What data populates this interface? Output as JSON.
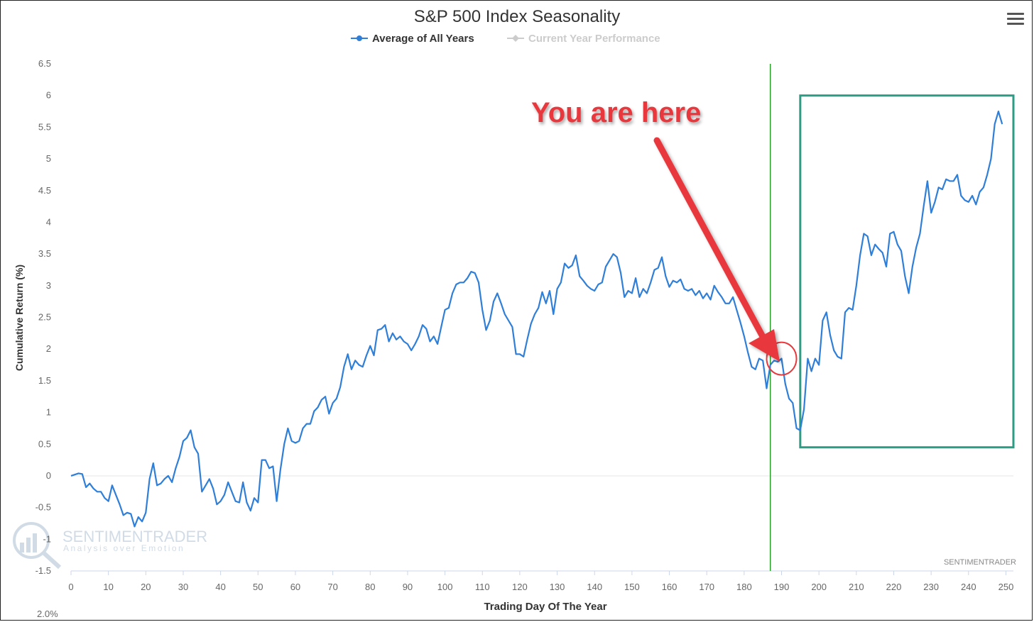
{
  "chart_data": {
    "type": "line",
    "title": "S&P 500 Index Seasonality",
    "xlabel": "Trading Day Of The Year",
    "ylabel": "Cumulative Return (%)",
    "xlim": [
      0,
      252
    ],
    "ylim": [
      -1.5,
      6.5
    ],
    "x_ticks": [
      0,
      10,
      20,
      30,
      40,
      50,
      60,
      70,
      80,
      90,
      100,
      110,
      120,
      130,
      140,
      150,
      160,
      170,
      180,
      190,
      200,
      210,
      220,
      230,
      240,
      250
    ],
    "y_ticks": [
      -1.5,
      -1,
      -0.5,
      0,
      0.5,
      1,
      1.5,
      2,
      2.5,
      3,
      3.5,
      4,
      4.5,
      5,
      5.5,
      6,
      6.5
    ],
    "legend_position": "top-center",
    "grid": false,
    "series": [
      {
        "name": "Average of All Years",
        "color": "#2f7ed8",
        "points": [
          [
            0,
            0
          ],
          [
            2,
            0.04
          ],
          [
            3,
            0.03
          ],
          [
            4,
            -0.18
          ],
          [
            5,
            -0.12
          ],
          [
            6,
            -0.2
          ],
          [
            7,
            -0.25
          ],
          [
            8,
            -0.25
          ],
          [
            9,
            -0.35
          ],
          [
            10,
            -0.4
          ],
          [
            11,
            -0.15
          ],
          [
            12,
            -0.3
          ],
          [
            13,
            -0.45
          ],
          [
            14,
            -0.62
          ],
          [
            15,
            -0.58
          ],
          [
            16,
            -0.6
          ],
          [
            17,
            -0.8
          ],
          [
            18,
            -0.65
          ],
          [
            19,
            -0.72
          ],
          [
            20,
            -0.58
          ],
          [
            21,
            -0.05
          ],
          [
            22,
            0.2
          ],
          [
            23,
            -0.15
          ],
          [
            24,
            -0.12
          ],
          [
            25,
            -0.05
          ],
          [
            26,
            0
          ],
          [
            27,
            -0.1
          ],
          [
            28,
            0.12
          ],
          [
            29,
            0.3
          ],
          [
            30,
            0.55
          ],
          [
            31,
            0.6
          ],
          [
            32,
            0.72
          ],
          [
            33,
            0.45
          ],
          [
            34,
            0.35
          ],
          [
            35,
            -0.25
          ],
          [
            36,
            -0.15
          ],
          [
            37,
            -0.05
          ],
          [
            38,
            -0.2
          ],
          [
            39,
            -0.45
          ],
          [
            40,
            -0.4
          ],
          [
            41,
            -0.3
          ],
          [
            42,
            -0.1
          ],
          [
            43,
            -0.25
          ],
          [
            44,
            -0.4
          ],
          [
            45,
            -0.42
          ],
          [
            46,
            -0.1
          ],
          [
            47,
            -0.42
          ],
          [
            48,
            -0.55
          ],
          [
            49,
            -0.35
          ],
          [
            50,
            -0.42
          ],
          [
            51,
            0.25
          ],
          [
            52,
            0.25
          ],
          [
            53,
            0.12
          ],
          [
            54,
            0.15
          ],
          [
            55,
            -0.4
          ],
          [
            56,
            0.1
          ],
          [
            57,
            0.5
          ],
          [
            58,
            0.75
          ],
          [
            59,
            0.55
          ],
          [
            60,
            0.52
          ],
          [
            61,
            0.55
          ],
          [
            62,
            0.75
          ],
          [
            63,
            0.82
          ],
          [
            64,
            0.82
          ],
          [
            65,
            1.02
          ],
          [
            66,
            1.08
          ],
          [
            67,
            1.2
          ],
          [
            68,
            1.25
          ],
          [
            69,
            0.98
          ],
          [
            70,
            1.15
          ],
          [
            71,
            1.22
          ],
          [
            72,
            1.4
          ],
          [
            73,
            1.72
          ],
          [
            74,
            1.92
          ],
          [
            75,
            1.68
          ],
          [
            76,
            1.82
          ],
          [
            77,
            1.75
          ],
          [
            78,
            1.72
          ],
          [
            79,
            1.9
          ],
          [
            80,
            2.05
          ],
          [
            81,
            1.9
          ],
          [
            82,
            2.3
          ],
          [
            83,
            2.32
          ],
          [
            84,
            2.38
          ],
          [
            85,
            2.12
          ],
          [
            86,
            2.25
          ],
          [
            87,
            2.15
          ],
          [
            88,
            2.2
          ],
          [
            89,
            2.12
          ],
          [
            90,
            2.08
          ],
          [
            91,
            1.98
          ],
          [
            92,
            2.08
          ],
          [
            93,
            2.2
          ],
          [
            94,
            2.38
          ],
          [
            95,
            2.32
          ],
          [
            96,
            2.12
          ],
          [
            97,
            2.2
          ],
          [
            98,
            2.08
          ],
          [
            99,
            2.35
          ],
          [
            100,
            2.62
          ],
          [
            101,
            2.65
          ],
          [
            102,
            2.88
          ],
          [
            103,
            3.02
          ],
          [
            104,
            3.05
          ],
          [
            105,
            3.05
          ],
          [
            106,
            3.12
          ],
          [
            107,
            3.22
          ],
          [
            108,
            3.2
          ],
          [
            109,
            3.05
          ],
          [
            110,
            2.62
          ],
          [
            111,
            2.3
          ],
          [
            112,
            2.45
          ],
          [
            113,
            2.75
          ],
          [
            114,
            2.88
          ],
          [
            115,
            2.72
          ],
          [
            116,
            2.55
          ],
          [
            117,
            2.45
          ],
          [
            118,
            2.35
          ],
          [
            119,
            1.92
          ],
          [
            120,
            1.92
          ],
          [
            121,
            1.88
          ],
          [
            122,
            2.15
          ],
          [
            123,
            2.4
          ],
          [
            124,
            2.55
          ],
          [
            125,
            2.65
          ],
          [
            126,
            2.9
          ],
          [
            127,
            2.72
          ],
          [
            128,
            2.92
          ],
          [
            129,
            2.55
          ],
          [
            130,
            2.95
          ],
          [
            131,
            3.05
          ],
          [
            132,
            3.35
          ],
          [
            133,
            3.28
          ],
          [
            134,
            3.32
          ],
          [
            135,
            3.48
          ],
          [
            136,
            3.15
          ],
          [
            137,
            3.08
          ],
          [
            138,
            3.0
          ],
          [
            139,
            2.95
          ],
          [
            140,
            2.92
          ],
          [
            141,
            3.02
          ],
          [
            142,
            3.05
          ],
          [
            143,
            3.3
          ],
          [
            144,
            3.4
          ],
          [
            145,
            3.5
          ],
          [
            146,
            3.45
          ],
          [
            147,
            3.2
          ],
          [
            148,
            2.82
          ],
          [
            149,
            2.92
          ],
          [
            150,
            2.88
          ],
          [
            151,
            3.12
          ],
          [
            152,
            2.82
          ],
          [
            153,
            2.95
          ],
          [
            154,
            2.88
          ],
          [
            155,
            3.05
          ],
          [
            156,
            3.25
          ],
          [
            157,
            3.28
          ],
          [
            158,
            3.45
          ],
          [
            159,
            3.15
          ],
          [
            160,
            2.98
          ],
          [
            161,
            3.08
          ],
          [
            162,
            3.05
          ],
          [
            163,
            3.1
          ],
          [
            164,
            2.95
          ],
          [
            165,
            2.92
          ],
          [
            166,
            2.95
          ],
          [
            167,
            2.85
          ],
          [
            168,
            2.92
          ],
          [
            169,
            2.8
          ],
          [
            170,
            2.88
          ],
          [
            171,
            2.78
          ],
          [
            172,
            3.0
          ],
          [
            173,
            2.9
          ],
          [
            174,
            2.82
          ],
          [
            175,
            2.72
          ],
          [
            176,
            2.72
          ],
          [
            177,
            2.82
          ],
          [
            178,
            2.62
          ],
          [
            179,
            2.42
          ],
          [
            180,
            2.2
          ],
          [
            181,
            1.95
          ],
          [
            182,
            1.72
          ],
          [
            183,
            1.68
          ],
          [
            184,
            1.85
          ],
          [
            185,
            1.82
          ],
          [
            186,
            1.38
          ],
          [
            187,
            1.75
          ],
          [
            188,
            1.82
          ],
          [
            189,
            1.8
          ],
          [
            190,
            1.85
          ],
          [
            191,
            1.45
          ],
          [
            192,
            1.22
          ],
          [
            193,
            1.15
          ],
          [
            194,
            0.75
          ],
          [
            195,
            0.72
          ],
          [
            196,
            1.05
          ],
          [
            197,
            1.85
          ],
          [
            198,
            1.65
          ],
          [
            199,
            1.85
          ],
          [
            200,
            1.75
          ],
          [
            201,
            2.45
          ],
          [
            202,
            2.58
          ],
          [
            203,
            2.22
          ],
          [
            204,
            1.98
          ],
          [
            205,
            1.88
          ],
          [
            206,
            1.85
          ],
          [
            207,
            2.58
          ],
          [
            208,
            2.65
          ],
          [
            209,
            2.62
          ],
          [
            210,
            3.0
          ],
          [
            211,
            3.48
          ],
          [
            212,
            3.82
          ],
          [
            213,
            3.78
          ],
          [
            214,
            3.48
          ],
          [
            215,
            3.65
          ],
          [
            216,
            3.58
          ],
          [
            217,
            3.52
          ],
          [
            218,
            3.3
          ],
          [
            219,
            3.82
          ],
          [
            220,
            3.85
          ],
          [
            221,
            3.65
          ],
          [
            222,
            3.55
          ],
          [
            223,
            3.15
          ],
          [
            224,
            2.88
          ],
          [
            225,
            3.3
          ],
          [
            226,
            3.6
          ],
          [
            227,
            3.82
          ],
          [
            228,
            4.25
          ],
          [
            229,
            4.65
          ],
          [
            230,
            4.15
          ],
          [
            231,
            4.32
          ],
          [
            232,
            4.55
          ],
          [
            233,
            4.52
          ],
          [
            234,
            4.68
          ],
          [
            235,
            4.65
          ],
          [
            236,
            4.65
          ],
          [
            237,
            4.75
          ],
          [
            238,
            4.42
          ],
          [
            239,
            4.35
          ],
          [
            240,
            4.32
          ],
          [
            241,
            4.42
          ],
          [
            242,
            4.28
          ],
          [
            243,
            4.48
          ],
          [
            244,
            4.55
          ],
          [
            245,
            4.75
          ],
          [
            246,
            5.0
          ],
          [
            247,
            5.55
          ],
          [
            248,
            5.75
          ],
          [
            249,
            5.55
          ]
        ]
      },
      {
        "name": "Current Year Performance",
        "color": "#cccccc",
        "points": []
      }
    ],
    "vertical_marker_x": 187,
    "annotation_text": "You are here",
    "highlight_box": {
      "x_from": 195,
      "x_to": 252,
      "y_from": 0.45,
      "y_to": 6.0
    },
    "circle_marker": {
      "x": 190,
      "y": 1.85
    }
  },
  "header": {
    "watermark_title": "SENTIMENTRADER",
    "watermark_tagline": "Analysis over Emotion",
    "credit": "SENTIMENTRADER",
    "navigator_label": "2.0%"
  },
  "colors": {
    "line": "#2f7ed8",
    "marker": "#2a9d2a",
    "annotation": "#e8393d",
    "box": "#2a9d84",
    "axis": "#ccd6eb",
    "text": "#666666"
  },
  "icons": {
    "menu": "hamburger-menu-icon"
  }
}
